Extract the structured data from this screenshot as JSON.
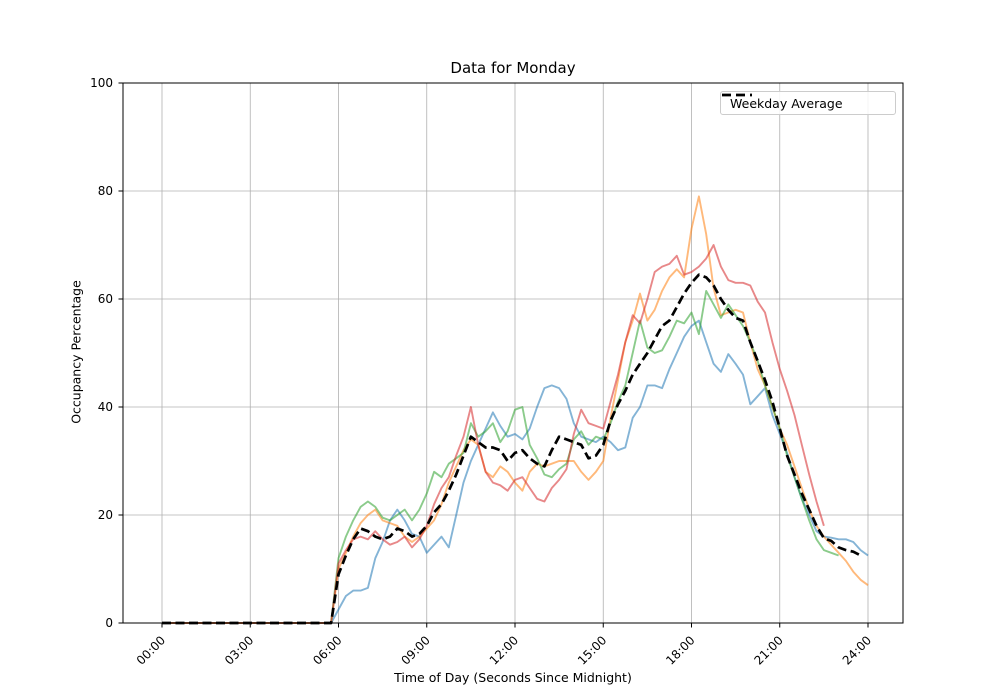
{
  "chart_data": {
    "type": "line",
    "title": "Data for Monday",
    "xlabel": "Time of Day (Seconds Since Midnight)",
    "ylabel": "Occupancy Percentage",
    "ylim": [
      0,
      100
    ],
    "y_ticks": [
      0,
      20,
      40,
      60,
      80,
      100
    ],
    "x_tick_hours": [
      0,
      3,
      6,
      9,
      12,
      15,
      18,
      21,
      24
    ],
    "x_tick_labels": [
      "00:00",
      "03:00",
      "06:00",
      "09:00",
      "12:00",
      "15:00",
      "18:00",
      "21:00",
      "24:00"
    ],
    "grid": true,
    "grid_color": "#b0b0b0",
    "legend": {
      "position": "upper right",
      "entries": [
        {
          "label": "Weekday Average",
          "color": "#000000",
          "dashed": true
        }
      ]
    },
    "x_start_hour": 0,
    "x_step_hours": 0.25,
    "series": [
      {
        "name": "monday-line-1",
        "color": "#1f77b4",
        "opacity": 0.55,
        "width": 1.9,
        "dashed": false,
        "values": [
          0,
          0,
          0,
          0,
          0,
          0,
          0,
          0,
          0,
          0,
          0,
          0,
          0,
          0,
          0,
          0,
          0,
          0,
          0,
          0,
          0,
          0,
          0,
          0,
          2.5,
          5,
          6,
          6,
          6.5,
          12,
          15,
          19,
          21,
          19,
          16.5,
          16,
          13,
          14.5,
          16,
          14,
          20,
          26,
          30,
          33,
          36,
          39,
          36.5,
          34.5,
          35,
          34,
          36,
          40,
          43.5,
          44,
          43.5,
          41.5,
          37,
          34.5,
          34,
          33.5,
          34.5,
          33.5,
          32,
          32.5,
          38,
          40,
          44,
          44,
          43.5,
          47,
          50,
          53,
          55,
          56,
          52,
          48,
          46.5,
          49.8,
          48,
          46,
          40.5,
          42,
          43.5,
          38.5,
          35,
          31.5,
          27,
          23,
          20,
          17,
          16,
          15.8,
          15.5,
          15.5,
          15,
          13.5,
          12.5
        ]
      },
      {
        "name": "monday-line-2",
        "color": "#ff7f0e",
        "opacity": 0.55,
        "width": 1.9,
        "dashed": false,
        "values": [
          0,
          0,
          0,
          0,
          0,
          0,
          0,
          0,
          0,
          0,
          0,
          0,
          0,
          0,
          0,
          0,
          0,
          0,
          0,
          0,
          0,
          0,
          0,
          0,
          10,
          13,
          16,
          18.5,
          20,
          21,
          19,
          18.5,
          18,
          16,
          15,
          16,
          17.5,
          19,
          22,
          26,
          29,
          32,
          34,
          33,
          28,
          27,
          29,
          28,
          26,
          24.5,
          28,
          29.5,
          29,
          29.5,
          30,
          30,
          30,
          28,
          26.5,
          28,
          30,
          38,
          45,
          52,
          56,
          61,
          56,
          58,
          61.5,
          64,
          65.5,
          64,
          73,
          79,
          72,
          62,
          57,
          57.5,
          58,
          57.5,
          52,
          47,
          44,
          40,
          36,
          33,
          29,
          25,
          21,
          18,
          16,
          14.5,
          13,
          11.5,
          9.5,
          8,
          7
        ]
      },
      {
        "name": "monday-line-3",
        "color": "#2ca02c",
        "opacity": 0.55,
        "width": 1.9,
        "dashed": false,
        "values": [
          0,
          0,
          0,
          0,
          0,
          0,
          0,
          0,
          0,
          0,
          0,
          0,
          0,
          0,
          0,
          0,
          0,
          0,
          0,
          0,
          0,
          0,
          0,
          0,
          12,
          16,
          19,
          21.5,
          22.5,
          21.5,
          19.5,
          19,
          20,
          21,
          19,
          21,
          24,
          28,
          27,
          29.5,
          30.5,
          31.5,
          37,
          34.5,
          35.5,
          37,
          33.5,
          35.5,
          39.5,
          40,
          33,
          30.5,
          27.5,
          27,
          28.5,
          29.5,
          34,
          35.5,
          33,
          34.5,
          34,
          37,
          41,
          44,
          50,
          56,
          51,
          50,
          50.5,
          53,
          56,
          55.5,
          57.5,
          53.5,
          61.5,
          59,
          56.5,
          59,
          57,
          55,
          52,
          48.5,
          44,
          40,
          36,
          31,
          27,
          23,
          19,
          15.5,
          13.5,
          13,
          12.5,
          null,
          null,
          null,
          null
        ]
      },
      {
        "name": "monday-line-4",
        "color": "#d62728",
        "opacity": 0.55,
        "width": 1.9,
        "dashed": false,
        "values": [
          0,
          0,
          0,
          0,
          0,
          0,
          0,
          0,
          0,
          0,
          0,
          0,
          0,
          0,
          0,
          0,
          0,
          0,
          0,
          0,
          0,
          0,
          0,
          0,
          11,
          13.5,
          15.5,
          16,
          15.5,
          17,
          15.5,
          14.5,
          15,
          16,
          14,
          15.5,
          18,
          22,
          25,
          27,
          31,
          34.5,
          40,
          33,
          28,
          26,
          25.5,
          24.5,
          26.5,
          27,
          25,
          23,
          22.5,
          25,
          26.5,
          28.5,
          35,
          39.5,
          37,
          36.5,
          36,
          41,
          46,
          52,
          57,
          55.5,
          60,
          65,
          66,
          66.5,
          68,
          64.5,
          65,
          66,
          67.5,
          70,
          66,
          63.5,
          63,
          63,
          62.5,
          59.5,
          57.5,
          52,
          47,
          43,
          38.5,
          33,
          27.5,
          22.5,
          18,
          null,
          null,
          null,
          null,
          null,
          null
        ]
      },
      {
        "name": "Weekday Average",
        "color": "#000000",
        "opacity": 1,
        "width": 2.7,
        "dashed": true,
        "values": [
          0,
          0,
          0,
          0,
          0,
          0,
          0,
          0,
          0,
          0,
          0,
          0,
          0,
          0,
          0,
          0,
          0,
          0,
          0,
          0,
          0,
          0,
          0,
          0,
          9,
          12.5,
          15.5,
          17.5,
          17,
          16,
          15.5,
          16,
          17.5,
          17,
          16,
          16.5,
          18,
          20.5,
          22,
          24.5,
          27.5,
          31,
          34.5,
          33.5,
          32.5,
          32.5,
          32,
          30,
          31.5,
          32,
          30.5,
          29.5,
          29,
          32,
          34.5,
          34,
          33.5,
          33,
          30.5,
          31,
          33,
          37.5,
          40.5,
          43,
          46,
          48,
          50,
          52.5,
          55,
          56,
          58.5,
          61,
          63,
          64.5,
          64,
          62.5,
          60,
          58,
          56.5,
          56,
          52,
          48.5,
          45,
          41,
          36,
          31,
          27.5,
          24,
          21,
          18,
          15.7,
          15.2,
          14,
          13.5,
          13.2,
          12.5,
          null
        ]
      }
    ]
  }
}
